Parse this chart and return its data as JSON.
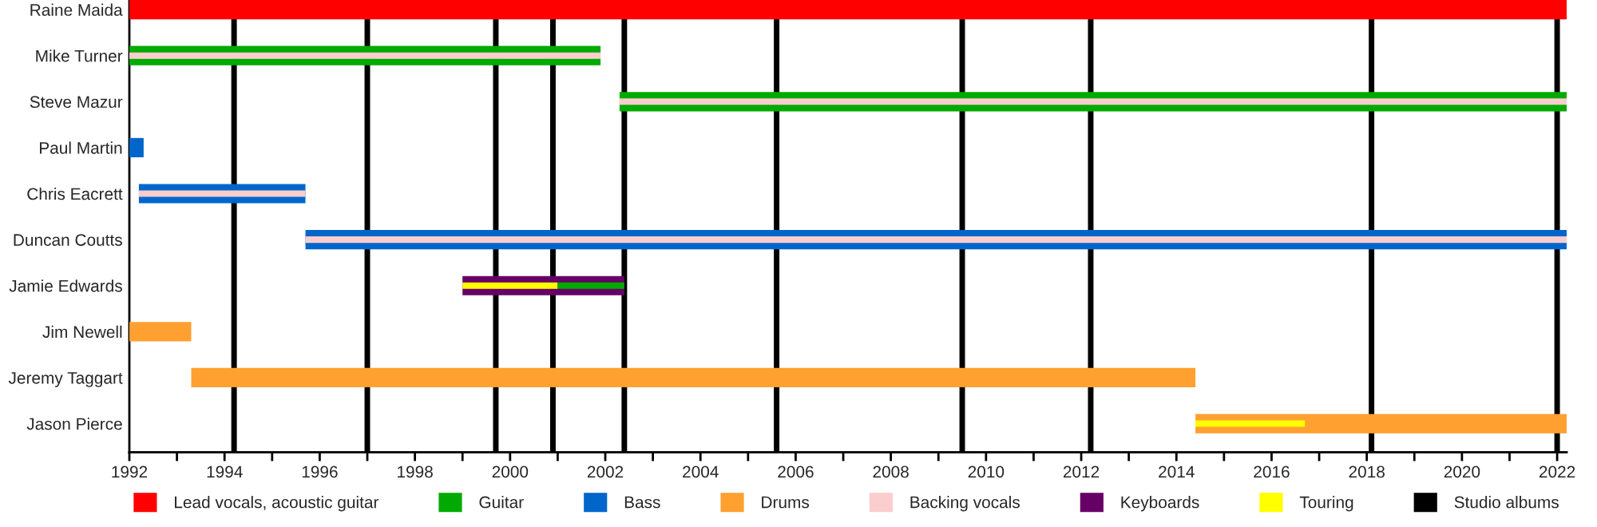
{
  "chart_data": {
    "type": "bar",
    "orientation": "horizontal",
    "grid": false,
    "legend": "bottom",
    "categories": [
      "Raine Maida",
      "Mike Turner",
      "Steve Mazur",
      "Paul Martin",
      "Chris Eacrett",
      "Duncan Coutts",
      "Jamie Edwards",
      "Jim Newell",
      "Jeremy Taggart",
      "Jason Pierce"
    ],
    "series": [
      {
        "name": "Lead vocals, acoustic guitar",
        "color": "#ff0000",
        "base": [
          1992,
          null,
          null,
          null,
          null,
          null,
          null,
          null,
          null,
          null
        ],
        "values": [
          30.2,
          null,
          null,
          null,
          null,
          null,
          null,
          null,
          null,
          null
        ]
      },
      {
        "name": "Guitar",
        "color": "#00aa00",
        "base": [
          null,
          1992,
          2002.3,
          null,
          null,
          null,
          2001.0,
          null,
          null,
          null
        ],
        "values": [
          null,
          9.9,
          19.9,
          null,
          null,
          null,
          1.4,
          null,
          null,
          null
        ]
      },
      {
        "name": "Bass",
        "color": "#0066cc",
        "base": [
          null,
          null,
          null,
          1992,
          1992.2,
          1995.7,
          null,
          null,
          null,
          null
        ],
        "values": [
          null,
          null,
          null,
          0.3,
          3.5,
          26.5,
          null,
          null,
          null,
          null
        ]
      },
      {
        "name": "Drums",
        "color": "#ffa030",
        "base": [
          null,
          null,
          null,
          null,
          null,
          null,
          null,
          1992,
          1993.3,
          2014.4
        ],
        "values": [
          null,
          null,
          null,
          null,
          null,
          null,
          null,
          1.3,
          21.1,
          7.8
        ]
      },
      {
        "name": "Backing vocals",
        "color": "#fbcdcd",
        "base": [
          null,
          1992,
          2002.3,
          null,
          1992.2,
          1995.7,
          null,
          null,
          null,
          null
        ],
        "values": [
          null,
          9.9,
          19.9,
          null,
          3.5,
          26.5,
          null,
          null,
          null,
          null
        ]
      },
      {
        "name": "Keyboards",
        "color": "#660066",
        "base": [
          null,
          null,
          null,
          null,
          null,
          null,
          1999.0,
          null,
          null,
          null
        ],
        "values": [
          null,
          null,
          null,
          null,
          null,
          null,
          3.4,
          null,
          null,
          null
        ]
      },
      {
        "name": "Touring",
        "color": "#ffff00",
        "base": [
          null,
          null,
          null,
          null,
          null,
          null,
          1999.0,
          null,
          null,
          2014.4
        ],
        "values": [
          null,
          null,
          null,
          null,
          null,
          null,
          2.0,
          null,
          null,
          2.3
        ]
      }
    ],
    "ref_lines": [
      {
        "axis": "x",
        "value": 1994.2,
        "label": "Studio albums",
        "color": "#000000"
      },
      {
        "axis": "x",
        "value": 1997.0,
        "color": "#000000"
      },
      {
        "axis": "x",
        "value": 1999.7,
        "color": "#000000"
      },
      {
        "axis": "x",
        "value": 2000.9,
        "color": "#000000"
      },
      {
        "axis": "x",
        "value": 2002.4,
        "color": "#000000"
      },
      {
        "axis": "x",
        "value": 2005.6,
        "color": "#000000"
      },
      {
        "axis": "x",
        "value": 2009.5,
        "color": "#000000"
      },
      {
        "axis": "x",
        "value": 2012.2,
        "color": "#000000"
      },
      {
        "axis": "x",
        "value": 2018.1,
        "color": "#000000"
      },
      {
        "axis": "x",
        "value": 2022.0,
        "color": "#000000"
      }
    ],
    "xlim": [
      1992,
      2022.2
    ],
    "xticks": [
      1992,
      {
        "value": 1993,
        "label": null
      },
      1994,
      {
        "value": 1995,
        "label": null
      },
      1996,
      {
        "value": 1997,
        "label": null
      },
      1998,
      {
        "value": 1999,
        "label": null
      },
      2000,
      {
        "value": 2001,
        "label": null
      },
      2002,
      {
        "value": 2003,
        "label": null
      },
      2004,
      {
        "value": 2005,
        "label": null
      },
      2006,
      {
        "value": 2007,
        "label": null
      },
      2008,
      {
        "value": 2009,
        "label": null
      },
      2010,
      {
        "value": 2011,
        "label": null
      },
      2012,
      {
        "value": 2013,
        "label": null
      },
      2014,
      {
        "value": 2015,
        "label": null
      },
      2016,
      {
        "value": 2017,
        "label": null
      },
      2018,
      {
        "value": 2019,
        "label": null
      },
      2020,
      {
        "value": 2021,
        "label": null
      },
      2022
    ]
  }
}
